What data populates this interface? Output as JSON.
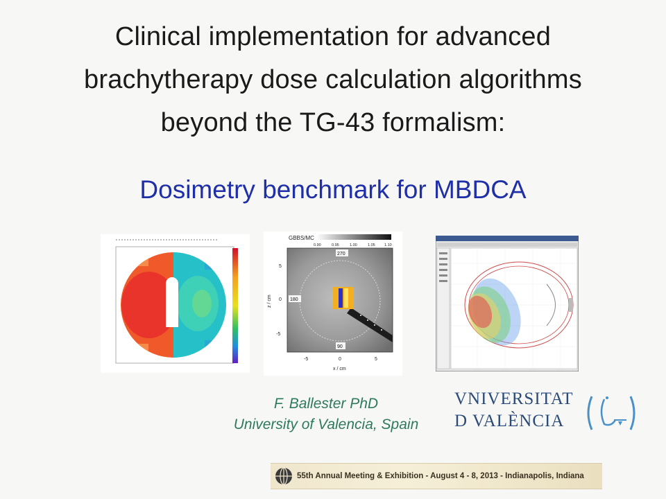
{
  "slide": {
    "title_lines": [
      "Clinical implementation for advanced",
      "brachytherapy dose calculation algorithms",
      "beyond the TG-43 formalism:"
    ],
    "subtitle": "Dosimetry benchmark for MBDCA",
    "author": {
      "name": "F. Ballester  PhD",
      "affiliation": "University of Valencia, Spain"
    },
    "logo": {
      "lines": [
        "VNIVERSITAT",
        "D VALÈNCIA"
      ]
    },
    "banner": {
      "text": "55th Annual Meeting & Exhibition - August 4 - 8, 2013 - Indianapolis, Indiana"
    },
    "figures": {
      "fig1": {
        "icon": "dose-distribution-map"
      },
      "fig2": {
        "icon": "ratio-map-ct",
        "label": "GBBS/MC",
        "colorbar_ticks": [
          "0.90",
          "0.95",
          "1.00",
          "1.05",
          "1.10"
        ],
        "y_ticks": [
          "5",
          "0",
          "-5"
        ],
        "x_ticks": [
          "-5",
          "0",
          "5"
        ],
        "ylabel": "z / cm",
        "xlabel": "x / cm",
        "top_marker": "270",
        "left_marker": "180",
        "bottom_marker": "90"
      },
      "fig3": {
        "icon": "treatment-planning-screenshot"
      }
    }
  }
}
